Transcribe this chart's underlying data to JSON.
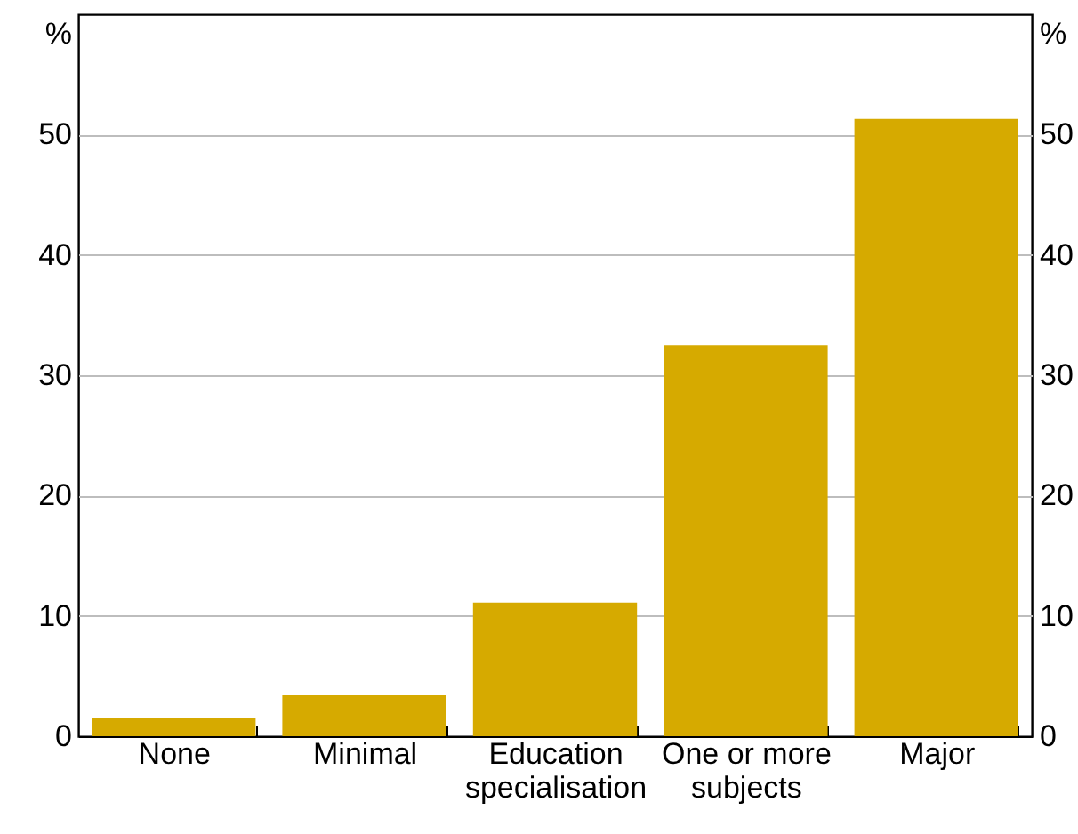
{
  "chart_data": {
    "type": "bar",
    "ylabel": "%",
    "y2label": "%",
    "categories": [
      "None",
      "Minimal",
      "Education specialisation",
      "One or more subjects",
      "Major"
    ],
    "values": [
      1.5,
      3.4,
      11.1,
      32.5,
      51.3
    ],
    "color": "#d6aa00",
    "ylim": [
      0,
      60
    ],
    "yticks": [
      0,
      10,
      20,
      30,
      40,
      50
    ],
    "y2lim": [
      0,
      60
    ],
    "y2ticks": [
      0,
      10,
      20,
      30,
      40,
      50
    ],
    "grid": "y"
  }
}
